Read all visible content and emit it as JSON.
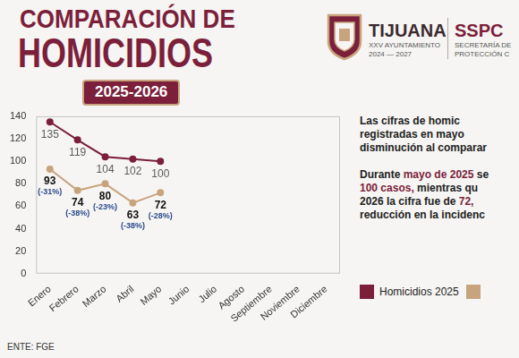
{
  "header": {
    "title_line1": "COMPARACIÓN DE",
    "title_line2": "HOMICIDIOS",
    "period": "2025-2026",
    "logo": {
      "city": "TIJUANA",
      "council": "XXV AYUNTAMIENTO",
      "term": "2024 — 2027",
      "agency": "SSPC",
      "agency_line1": "SECRETARÍA DE",
      "agency_line2": "PROTECCIÓN C"
    }
  },
  "text": {
    "paragraph1": [
      [
        {
          "text": "Las cifras de homic",
          "highlight": false
        }
      ],
      [
        {
          "text": "registradas en mayo",
          "highlight": false
        }
      ],
      [
        {
          "text": "disminución al comparar",
          "highlight": false
        }
      ]
    ],
    "paragraph2": [
      [
        {
          "text": "Durante ",
          "highlight": false
        },
        {
          "text": "mayo de 2025",
          "highlight": true
        },
        {
          "text": " se",
          "highlight": false
        }
      ],
      [
        {
          "text": "100 casos,",
          "highlight": true
        },
        {
          "text": " mientras qu",
          "highlight": false
        }
      ],
      [
        {
          "text": "2026 la cifra fue de ",
          "highlight": false
        },
        {
          "text": "72,",
          "highlight": true
        }
      ],
      [
        {
          "text": "reducción en la incidenc",
          "highlight": false
        }
      ]
    ]
  },
  "source": "ENTE: FGE",
  "chart_data": {
    "type": "line",
    "categories": [
      "Enero",
      "Febrero",
      "Marzo",
      "Abril",
      "Mayo",
      "Junio",
      "Julio",
      "Agosto",
      "Septiembre",
      "Noviembre",
      "Diciembre"
    ],
    "series": [
      {
        "name": "Homicidios 2025",
        "color": "#7b1f3a",
        "values": [
          135,
          119,
          104,
          102,
          100,
          null,
          null,
          null,
          null,
          null,
          null
        ]
      },
      {
        "name": null,
        "color": "#c8a47e",
        "values": [
          93,
          74,
          80,
          63,
          72,
          null,
          null,
          null,
          null,
          null,
          null
        ],
        "change_labels": [
          "(-31%)",
          "(-38%)",
          "(-23%)",
          "(-38%)",
          "(-28%)",
          null,
          null,
          null,
          null,
          null,
          null
        ]
      }
    ],
    "ylim": [
      0,
      140
    ],
    "yticks": [
      0,
      20,
      40,
      60,
      80,
      100,
      120,
      140
    ],
    "grid": false,
    "data_labels": true,
    "legend": "right"
  }
}
